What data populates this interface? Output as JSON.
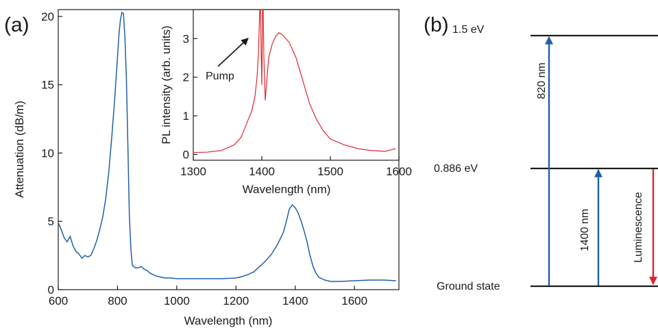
{
  "figure": {
    "panel_a_label": "(a)",
    "panel_b_label": "(b)"
  },
  "chart_data": [
    {
      "type": "line",
      "x_label": "Wavelength (nm)",
      "y_label": "Attenuation (dB/m)",
      "xlim": [
        600,
        1750
      ],
      "ylim": [
        0,
        20.5
      ],
      "x_ticks": [
        600,
        800,
        1000,
        1200,
        1400,
        1600
      ],
      "y_ticks": [
        0,
        5,
        10,
        15,
        20
      ],
      "color": "#1f5fa6",
      "series": [
        {
          "x": [
            600,
            610,
            620,
            630,
            640,
            650,
            660,
            670,
            680,
            690,
            700,
            710,
            720,
            730,
            740,
            750,
            760,
            770,
            780,
            790,
            800,
            805,
            810,
            815,
            820,
            825,
            830,
            835,
            840,
            845,
            850,
            860,
            870,
            880,
            890,
            900,
            910,
            920,
            930,
            940,
            950,
            960,
            980,
            1000,
            1050,
            1100,
            1150,
            1200,
            1220,
            1240,
            1260,
            1280,
            1300,
            1320,
            1340,
            1360,
            1370,
            1380,
            1390,
            1400,
            1410,
            1420,
            1430,
            1440,
            1450,
            1460,
            1470,
            1480,
            1500,
            1520,
            1550,
            1600,
            1650,
            1700,
            1740
          ],
          "y": [
            4.9,
            4.4,
            3.8,
            3.5,
            3.9,
            3.2,
            2.8,
            2.6,
            2.3,
            2.5,
            2.4,
            2.5,
            3.0,
            3.6,
            4.4,
            5.3,
            6.6,
            8.5,
            11.0,
            13.8,
            17.0,
            18.7,
            19.8,
            20.3,
            20.2,
            18.5,
            15.5,
            10.5,
            5.5,
            3.0,
            1.8,
            1.6,
            1.6,
            1.7,
            1.5,
            1.4,
            1.2,
            1.1,
            1.0,
            0.95,
            0.9,
            0.85,
            0.85,
            0.8,
            0.8,
            0.8,
            0.8,
            0.85,
            0.95,
            1.1,
            1.3,
            1.7,
            2.1,
            2.6,
            3.3,
            4.2,
            5.0,
            5.9,
            6.2,
            6.0,
            5.6,
            5.0,
            4.3,
            3.5,
            2.5,
            1.7,
            1.2,
            0.9,
            0.7,
            0.6,
            0.6,
            0.65,
            0.7,
            0.7,
            0.65
          ]
        }
      ]
    },
    {
      "type": "line",
      "x_label": "Wavelength (nm)",
      "y_label": "PL intensity (arb. units)",
      "xlim": [
        1300,
        1600
      ],
      "ylim": [
        -0.15,
        3.75
      ],
      "x_ticks": [
        1300,
        1400,
        1500,
        1600
      ],
      "y_ticks": [
        0,
        1,
        2,
        3
      ],
      "color": "#e0242b",
      "annotation": "Pump",
      "series": [
        {
          "x": [
            1300,
            1320,
            1340,
            1350,
            1360,
            1370,
            1380,
            1385,
            1390,
            1393,
            1395,
            1397,
            1398,
            1399,
            1400,
            1401,
            1402,
            1403,
            1405,
            1408,
            1410,
            1415,
            1420,
            1425,
            1430,
            1440,
            1450,
            1460,
            1470,
            1480,
            1490,
            1500,
            1520,
            1540,
            1560,
            1580,
            1595
          ],
          "y": [
            0.05,
            0.06,
            0.1,
            0.17,
            0.25,
            0.45,
            0.9,
            1.1,
            1.5,
            2.0,
            2.6,
            3.75,
            3.75,
            2.7,
            1.8,
            3.75,
            3.75,
            2.5,
            1.4,
            2.1,
            2.5,
            2.85,
            3.05,
            3.15,
            3.1,
            2.9,
            2.5,
            1.9,
            1.3,
            0.9,
            0.6,
            0.4,
            0.25,
            0.15,
            0.1,
            0.08,
            0.15
          ]
        }
      ]
    }
  ],
  "energy_diagram": {
    "levels": [
      {
        "label": "1.5 eV"
      },
      {
        "label": "0.886 eV"
      },
      {
        "label": "Ground state"
      }
    ],
    "transitions": [
      {
        "label": "820 nm",
        "color": "#1f5fa6"
      },
      {
        "label": "1400 nm",
        "color": "#1f5fa6"
      },
      {
        "label": "Luminescence",
        "color": "#e0242b"
      }
    ]
  }
}
